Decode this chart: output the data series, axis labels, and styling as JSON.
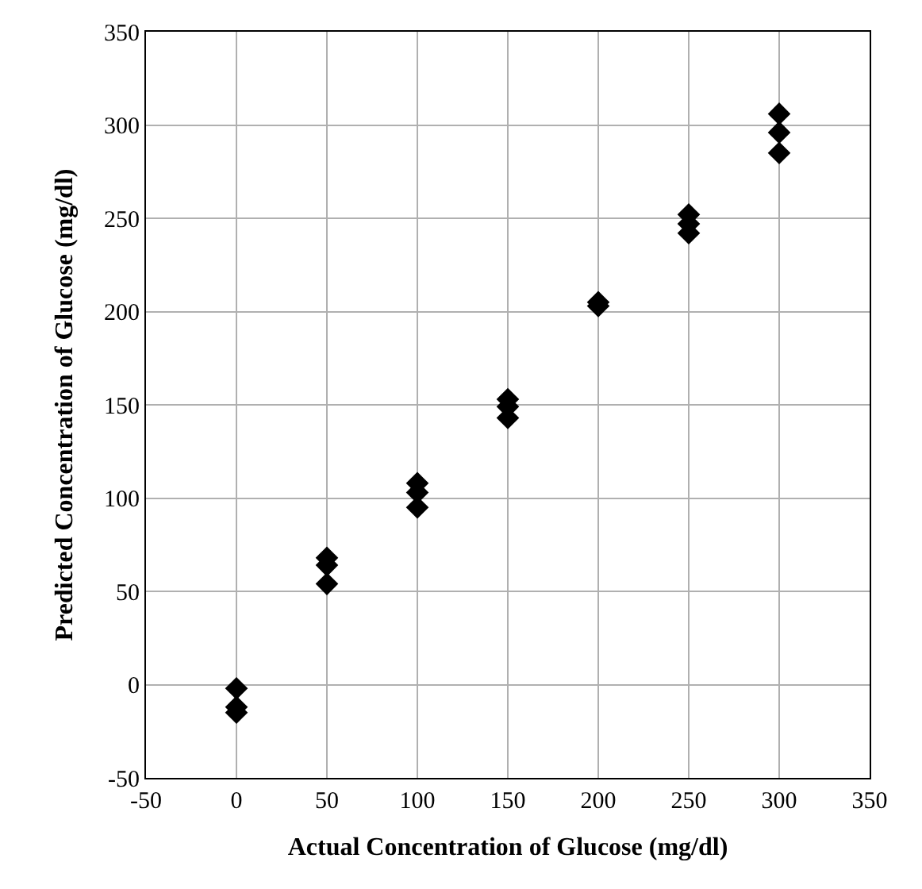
{
  "chart_data": {
    "type": "scatter",
    "xlabel": "Actual Concentration of Glucose (mg/dl)",
    "ylabel": "Predicted Concentration of Glucose (mg/dl)",
    "x": [
      0,
      0,
      0,
      50,
      50,
      50,
      100,
      100,
      100,
      150,
      150,
      150,
      200,
      200,
      250,
      250,
      250,
      300,
      300,
      300
    ],
    "series": [
      {
        "color": "#000000",
        "values": [
          -2,
          -12,
          -15,
          68,
          64,
          54,
          108,
          103,
          95,
          153,
          149,
          143,
          205,
          203,
          252,
          247,
          242,
          306,
          296,
          285
        ]
      }
    ],
    "xlim": [
      -50,
      350
    ],
    "xticks": [
      -50,
      0,
      50,
      100,
      150,
      200,
      250,
      300,
      350
    ],
    "ylim": [
      -50,
      350
    ],
    "yticks": [
      -50,
      0,
      50,
      100,
      150,
      200,
      250,
      300,
      350
    ],
    "grid": true,
    "marker": "diamond"
  }
}
